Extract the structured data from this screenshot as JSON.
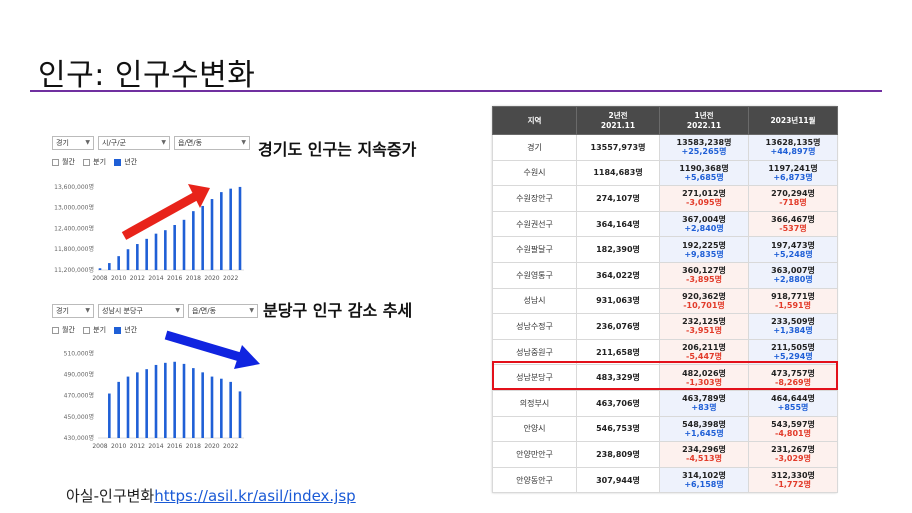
{
  "slide": {
    "title": "인구: 인구수변화",
    "annotation_gyeonggi": "경기도 인구는 지속증가",
    "annotation_bundang": "분당구 인구 감소 추세",
    "footer_prefix": "아실-인구변화",
    "footer_link": "https://asil.kr/asil/index.jsp"
  },
  "colors": {
    "title_rule": "#7030a0",
    "bar": "#1f5fd6",
    "arrow_up": "#e8231a",
    "arrow_down": "#1024e0",
    "increase": "#1f5fd6",
    "decrease": "#e23b2a",
    "header_bg": "#4a4a4a",
    "highlight": "#e3101a"
  },
  "mini_dashboards": [
    {
      "selects": [
        "경기",
        "시/구/군",
        "읍/면/동"
      ],
      "radios": [
        {
          "label": "월간",
          "checked": false
        },
        {
          "label": "분기",
          "checked": false
        },
        {
          "label": "년간",
          "checked": true
        }
      ],
      "icons": [
        "chevron-down-icon",
        "chevron-down-icon",
        "chevron-down-icon"
      ]
    },
    {
      "selects": [
        "경기",
        "성남시 분당구",
        "읍/면/동"
      ],
      "radios": [
        {
          "label": "월간",
          "checked": false
        },
        {
          "label": "분기",
          "checked": false
        },
        {
          "label": "년간",
          "checked": true
        }
      ],
      "icons": [
        "chevron-down-icon",
        "chevron-down-icon",
        "chevron-down-icon"
      ]
    }
  ],
  "chart_data": [
    {
      "type": "bar",
      "title": "",
      "xlabel": "",
      "ylabel": "",
      "yticks": [
        "13,600,000명",
        "13,000,000명",
        "12,400,000명",
        "11,800,000명",
        "11,200,000명"
      ],
      "ytick_values": [
        13600000,
        13000000,
        12400000,
        11800000,
        11200000
      ],
      "ylim": [
        11200000,
        13800000
      ],
      "xticks": [
        "2008",
        "2010",
        "2012",
        "2014",
        "2016",
        "2018",
        "2020",
        "2022"
      ],
      "x": [
        2008,
        2009,
        2010,
        2011,
        2012,
        2013,
        2014,
        2015,
        2016,
        2017,
        2018,
        2019,
        2020,
        2021,
        2022,
        2023
      ],
      "values": [
        11250000,
        11400000,
        11600000,
        11800000,
        11950000,
        12100000,
        12250000,
        12350000,
        12500000,
        12650000,
        12900000,
        13050000,
        13250000,
        13450000,
        13550000,
        13600000
      ],
      "legend": "none",
      "grid": false
    },
    {
      "type": "bar",
      "title": "",
      "xlabel": "",
      "ylabel": "",
      "yticks": [
        "510,000명",
        "490,000명",
        "470,000명",
        "450,000명",
        "430,000명"
      ],
      "ytick_values": [
        510000,
        490000,
        470000,
        450000,
        430000
      ],
      "ylim": [
        430000,
        515000
      ],
      "xticks": [
        "2008",
        "2010",
        "2012",
        "2014",
        "2016",
        "2018",
        "2020",
        "2022"
      ],
      "x": [
        2009,
        2010,
        2011,
        2012,
        2013,
        2014,
        2015,
        2016,
        2017,
        2018,
        2019,
        2020,
        2021,
        2022,
        2023
      ],
      "values": [
        472000,
        483000,
        488000,
        492000,
        495000,
        499000,
        501000,
        502000,
        500000,
        496000,
        492000,
        488000,
        486000,
        483000,
        474000
      ],
      "legend": "none",
      "grid": false
    }
  ],
  "table": {
    "headers": [
      "지역",
      "2년전\n2021.11",
      "1년전\n2022.11",
      "2023년11월"
    ],
    "rows": [
      {
        "region": "경기",
        "y2": "13557,973명",
        "y1": "13583,238명",
        "y1_chg": "+25,265명",
        "y1_dir": "up",
        "cur": "13628,135명",
        "cur_chg": "+44,897명",
        "cur_dir": "up"
      },
      {
        "region": "수원시",
        "y2": "1184,683명",
        "y1": "1190,368명",
        "y1_chg": "+5,685명",
        "y1_dir": "up",
        "cur": "1197,241명",
        "cur_chg": "+6,873명",
        "cur_dir": "up"
      },
      {
        "region": "수원장안구",
        "y2": "274,107명",
        "y1": "271,012명",
        "y1_chg": "-3,095명",
        "y1_dir": "down",
        "cur": "270,294명",
        "cur_chg": "-718명",
        "cur_dir": "down"
      },
      {
        "region": "수원권선구",
        "y2": "364,164명",
        "y1": "367,004명",
        "y1_chg": "+2,840명",
        "y1_dir": "up",
        "cur": "366,467명",
        "cur_chg": "-537명",
        "cur_dir": "down"
      },
      {
        "region": "수원팔달구",
        "y2": "182,390명",
        "y1": "192,225명",
        "y1_chg": "+9,835명",
        "y1_dir": "up",
        "cur": "197,473명",
        "cur_chg": "+5,248명",
        "cur_dir": "up"
      },
      {
        "region": "수원영통구",
        "y2": "364,022명",
        "y1": "360,127명",
        "y1_chg": "-3,895명",
        "y1_dir": "down",
        "cur": "363,007명",
        "cur_chg": "+2,880명",
        "cur_dir": "up"
      },
      {
        "region": "성남시",
        "y2": "931,063명",
        "y1": "920,362명",
        "y1_chg": "-10,701명",
        "y1_dir": "down",
        "cur": "918,771명",
        "cur_chg": "-1,591명",
        "cur_dir": "down"
      },
      {
        "region": "성남수정구",
        "y2": "236,076명",
        "y1": "232,125명",
        "y1_chg": "-3,951명",
        "y1_dir": "down",
        "cur": "233,509명",
        "cur_chg": "+1,384명",
        "cur_dir": "up"
      },
      {
        "region": "성남중원구",
        "y2": "211,658명",
        "y1": "206,211명",
        "y1_chg": "-5,447명",
        "y1_dir": "down",
        "cur": "211,505명",
        "cur_chg": "+5,294명",
        "cur_dir": "up"
      },
      {
        "region": "성남분당구",
        "y2": "483,329명",
        "y1": "482,026명",
        "y1_chg": "-1,303명",
        "y1_dir": "down",
        "cur": "473,757명",
        "cur_chg": "-8,269명",
        "cur_dir": "down"
      },
      {
        "region": "의정부시",
        "y2": "463,706명",
        "y1": "463,789명",
        "y1_chg": "+83명",
        "y1_dir": "up",
        "cur": "464,644명",
        "cur_chg": "+855명",
        "cur_dir": "up"
      },
      {
        "region": "안양시",
        "y2": "546,753명",
        "y1": "548,398명",
        "y1_chg": "+1,645명",
        "y1_dir": "up",
        "cur": "543,597명",
        "cur_chg": "-4,801명",
        "cur_dir": "down"
      },
      {
        "region": "안양만안구",
        "y2": "238,809명",
        "y1": "234,296명",
        "y1_chg": "-4,513명",
        "y1_dir": "down",
        "cur": "231,267명",
        "cur_chg": "-3,029명",
        "cur_dir": "down"
      },
      {
        "region": "안양동안구",
        "y2": "307,944명",
        "y1": "314,102명",
        "y1_chg": "+6,158명",
        "y1_dir": "up",
        "cur": "312,330명",
        "cur_chg": "-1,772명",
        "cur_dir": "down"
      }
    ]
  }
}
